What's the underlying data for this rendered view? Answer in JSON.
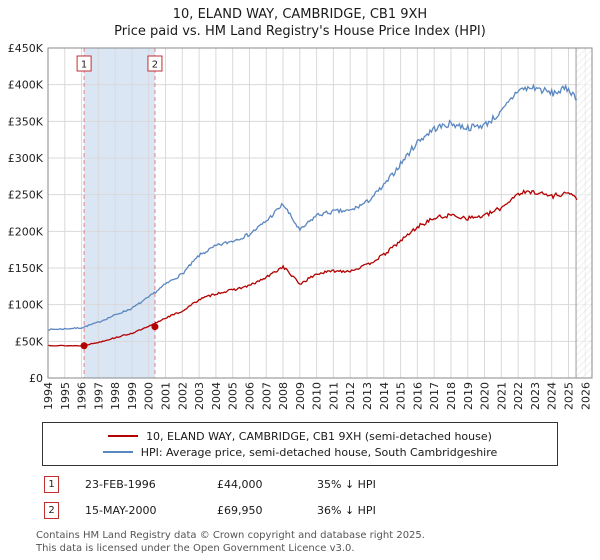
{
  "chart_data": {
    "type": "line",
    "title": "10, ELAND WAY, CAMBRIDGE, CB1 9XH",
    "subtitle": "Price paid vs. HM Land Registry's House Price Index (HPI)",
    "x_range": [
      1994,
      2026.4
    ],
    "ylim": [
      0,
      450000
    ],
    "grid": true,
    "legend_position": "bottom",
    "y_ticks": [
      0,
      50000,
      100000,
      150000,
      200000,
      250000,
      300000,
      350000,
      400000,
      450000
    ],
    "y_tick_labels": [
      "£0",
      "£50K",
      "£100K",
      "£150K",
      "£200K",
      "£250K",
      "£300K",
      "£350K",
      "£400K",
      "£450K"
    ],
    "x_ticks": [
      1994,
      1995,
      1996,
      1997,
      1998,
      1999,
      2000,
      2001,
      2002,
      2003,
      2004,
      2005,
      2006,
      2007,
      2008,
      2009,
      2010,
      2011,
      2012,
      2013,
      2014,
      2015,
      2016,
      2017,
      2018,
      2019,
      2020,
      2021,
      2022,
      2023,
      2024,
      2025,
      2026
    ],
    "series": [
      {
        "name": "10, ELAND WAY, CAMBRIDGE, CB1 9XH (semi-detached house)",
        "color": "#b30000",
        "x": [
          1994,
          1995,
          1996,
          1997,
          1998,
          1999,
          2000,
          2001,
          2002,
          2003,
          2004,
          2005,
          2006,
          2007,
          2008,
          2009,
          2010,
          2011,
          2012,
          2013,
          2014,
          2015,
          2016,
          2017,
          2018,
          2019,
          2020,
          2021,
          2022,
          2023,
          2024,
          2025,
          2025.5
        ],
        "y": [
          44500,
          44000,
          44000,
          48500,
          55000,
          61000,
          70000,
          82000,
          91000,
          107000,
          115000,
          120000,
          126000,
          137000,
          152000,
          128000,
          142000,
          146000,
          146000,
          154000,
          168000,
          187000,
          206000,
          218000,
          222000,
          218000,
          221000,
          232000,
          252000,
          254000,
          248000,
          253000,
          243000
        ]
      },
      {
        "name": "HPI: Average price, semi-detached house, South Cambridgeshire",
        "color": "#5b87c0",
        "x": [
          1994,
          1995,
          1996,
          1997,
          1998,
          1999,
          2000,
          2001,
          2002,
          2003,
          2004,
          2005,
          2006,
          2007,
          2008,
          2009,
          2010,
          2011,
          2012,
          2013,
          2014,
          2015,
          2016,
          2017,
          2018,
          2019,
          2020,
          2021,
          2022,
          2023,
          2024,
          2025,
          2025.5
        ],
        "y": [
          66000,
          67000,
          68500,
          76000,
          86000,
          95000,
          110000,
          128000,
          142000,
          167000,
          180000,
          187000,
          196000,
          214000,
          237000,
          201000,
          222000,
          227000,
          228000,
          240000,
          262000,
          292000,
          322000,
          340000,
          347000,
          341000,
          345000,
          362000,
          393000,
          396000,
          388000,
          395000,
          380000
        ]
      }
    ],
    "sale_markers": [
      {
        "label": "1",
        "x": 1996.15,
        "y": 44000
      },
      {
        "label": "2",
        "x": 2000.37,
        "y": 69950
      }
    ],
    "shaded_region": {
      "from": 1996.15,
      "to": 2000.37,
      "color": "#dbe6f5"
    },
    "data_end_x": 2025.45,
    "marker_line_color": "#e28080"
  },
  "transactions": [
    {
      "num": "1",
      "date": "23-FEB-1996",
      "price": "£44,000",
      "vs_hpi": "35% ↓ HPI"
    },
    {
      "num": "2",
      "date": "15-MAY-2000",
      "price": "£69,950",
      "vs_hpi": "36% ↓ HPI"
    }
  ],
  "footer": {
    "line1": "Contains HM Land Registry data © Crown copyright and database right 2025.",
    "line2": "This data is licensed under the Open Government Licence v3.0."
  }
}
